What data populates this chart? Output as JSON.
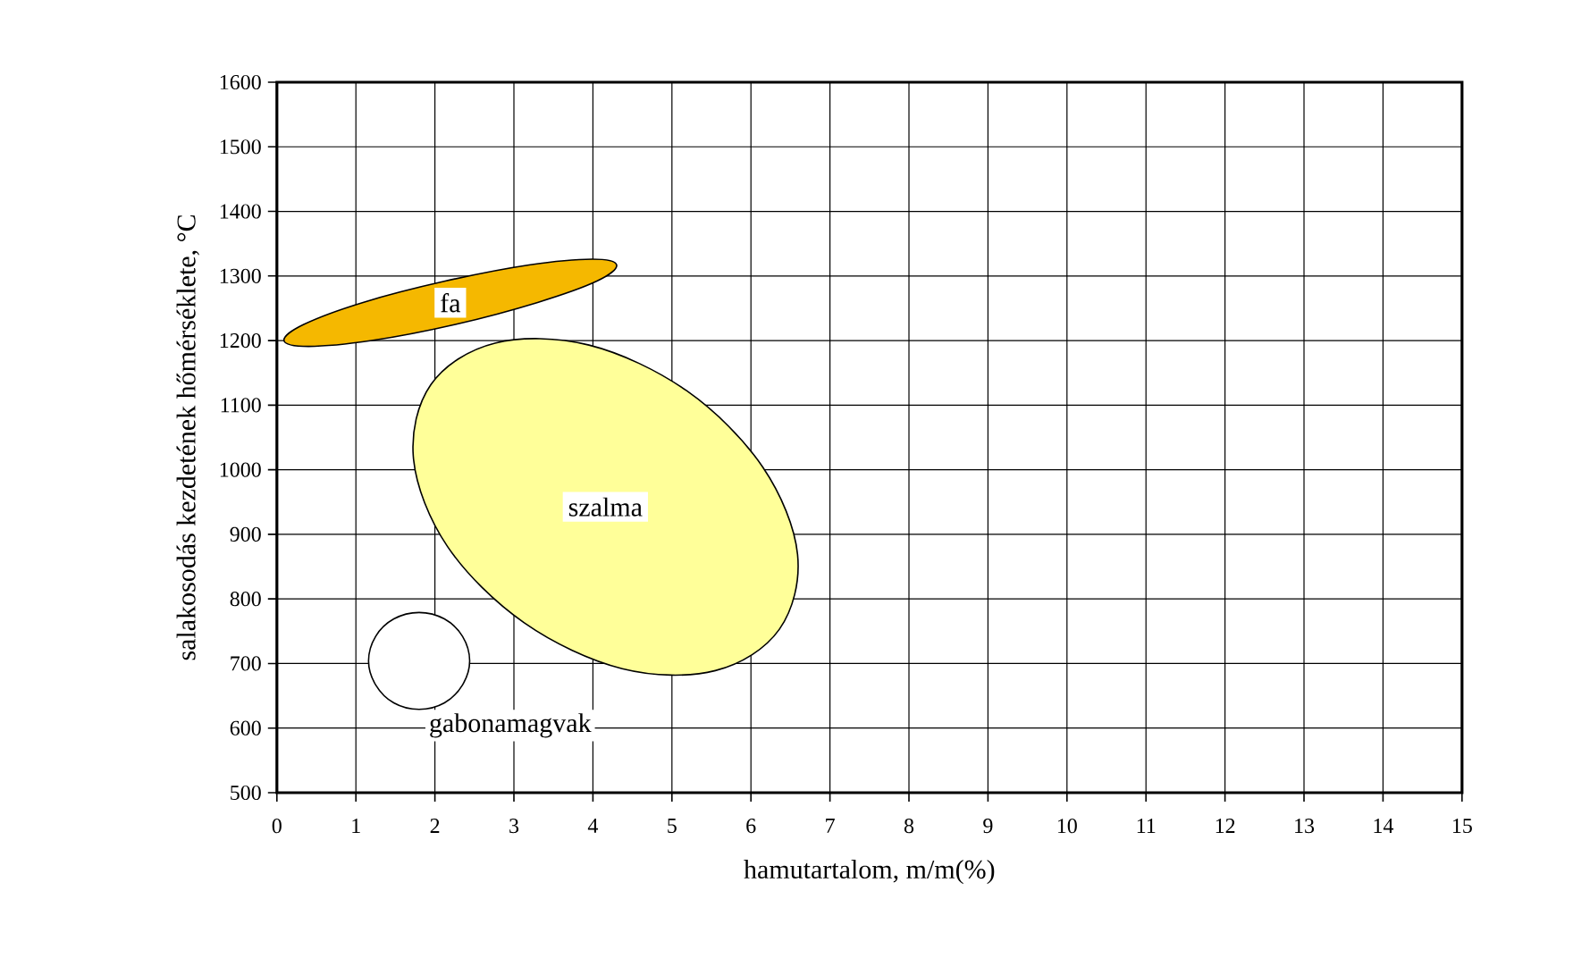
{
  "chart_data": {
    "type": "area",
    "xlabel": "hamutartalom, m/m(%)",
    "ylabel": "salakosodás kezdetének hőmérséklete, °C",
    "xlim": [
      0,
      15
    ],
    "ylim": [
      500,
      1600
    ],
    "xticks": [
      0,
      1,
      2,
      3,
      4,
      5,
      6,
      7,
      8,
      9,
      10,
      11,
      12,
      13,
      14,
      15
    ],
    "yticks": [
      500,
      600,
      700,
      800,
      900,
      1000,
      1100,
      1200,
      1300,
      1400,
      1500,
      1600
    ],
    "grid": true,
    "series": [
      {
        "name": "fa",
        "color": "#f5b800",
        "x": [
          4.3,
          3.99,
          3.19,
          2.13,
          1.09,
          0.34,
          0.09,
          0.4,
          1.2,
          2.26,
          3.3,
          4.05
        ],
        "values": [
          1317,
          1326,
          1317,
          1292,
          1259,
          1225,
          1200,
          1191,
          1200,
          1225,
          1259,
          1292
        ]
      },
      {
        "name": "szalma",
        "color": "#ffff99",
        "x": [
          6.36,
          6.59,
          6.15,
          5.19,
          3.95,
          2.76,
          1.95,
          1.73,
          2.16,
          3.13,
          4.37,
          5.55
        ],
        "values": [
          753,
          869,
          1004,
          1122,
          1193,
          1196,
          1132,
          1016,
          881,
          763,
          692,
          689
        ]
      },
      {
        "name": "gabonamagvak",
        "color": "#ffffff",
        "x": [
          2.44,
          2.35,
          2.12,
          1.8,
          1.48,
          1.25,
          1.16,
          1.25,
          1.48,
          1.8,
          2.12,
          2.35
        ],
        "values": [
          704,
          742,
          769,
          779,
          769,
          742,
          704,
          667,
          639,
          629,
          639,
          667
        ]
      }
    ]
  }
}
